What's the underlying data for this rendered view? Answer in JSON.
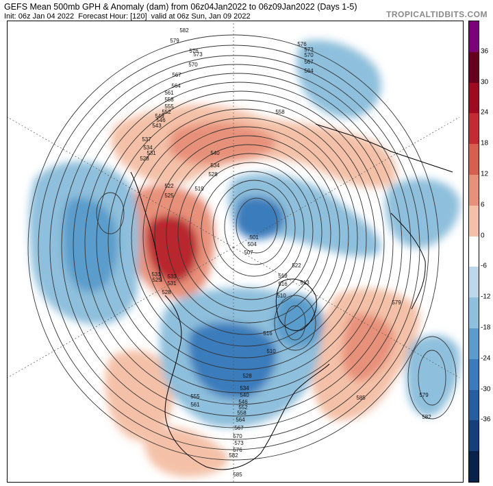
{
  "header": {
    "title": "GEFS Mean 500mb GPH & Anomaly (dam) from 06z04Jan2022 to 06z09Jan2022 (Days 1-5)",
    "init": "Init: 06z Jan 04 2022",
    "forecast_hour": "Forecast Hour: [120]",
    "valid": "valid at 06z Sun, Jan 09 2022",
    "brand": "TROPICALTIDBITS.COM"
  },
  "colorbar": {
    "ticks": [
      "36",
      "30",
      "24",
      "18",
      "12",
      "6",
      "0",
      "-6",
      "-12",
      "-18",
      "-24",
      "-30",
      "-36"
    ],
    "colors": [
      "#7a0177",
      "#67001f",
      "#9e0a20",
      "#c32a32",
      "#d6604d",
      "#e8917a",
      "#f4c1a8",
      "#ffffff",
      "#bcd8ea",
      "#8ebfdc",
      "#5a9ccb",
      "#3a7bbc",
      "#265f9f",
      "#14407a",
      "#08224c"
    ]
  },
  "contour_labels": [
    "582",
    "579",
    "576",
    "573",
    "570",
    "567",
    "564",
    "561",
    "558",
    "555",
    "552",
    "549",
    "546",
    "543",
    "537",
    "534",
    "531",
    "528",
    "525",
    "522",
    "519",
    "540",
    "534",
    "528",
    "576",
    "573",
    "570",
    "567",
    "564",
    "558",
    "501",
    "504",
    "507",
    "510",
    "513",
    "516",
    "519",
    "522",
    "525",
    "528",
    "531",
    "533",
    "579",
    "585",
    "579",
    "582",
    "531",
    "516",
    "510",
    "528",
    "534",
    "540",
    "546",
    "552",
    "555",
    "558",
    "561",
    "564",
    "567",
    "570",
    "573",
    "576",
    "582",
    "585"
  ]
}
